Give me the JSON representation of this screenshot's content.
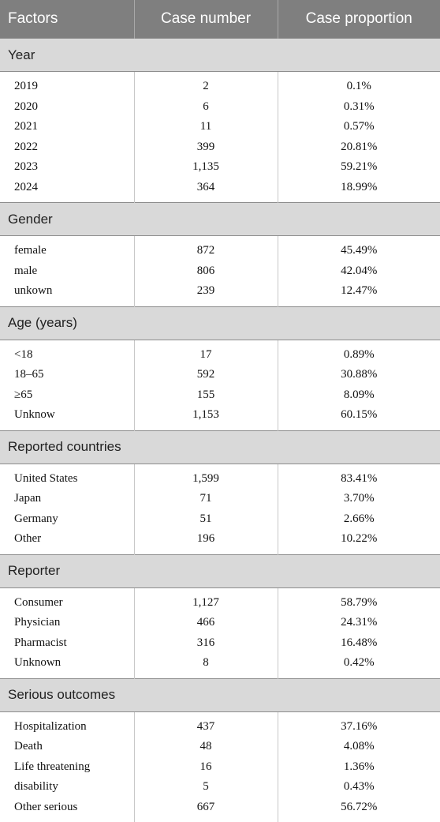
{
  "headers": [
    "Factors",
    "Case number",
    "Case proportion"
  ],
  "sections": [
    {
      "title": "Year",
      "rows": [
        [
          "2019",
          "2",
          "0.1%"
        ],
        [
          "2020",
          "6",
          "0.31%"
        ],
        [
          "2021",
          "11",
          "0.57%"
        ],
        [
          "2022",
          "399",
          "20.81%"
        ],
        [
          "2023",
          "1,135",
          "59.21%"
        ],
        [
          "2024",
          "364",
          "18.99%"
        ]
      ]
    },
    {
      "title": "Gender",
      "rows": [
        [
          "female",
          "872",
          "45.49%"
        ],
        [
          "male",
          "806",
          "42.04%"
        ],
        [
          "unkown",
          "239",
          "12.47%"
        ]
      ]
    },
    {
      "title": "Age (years)",
      "rows": [
        [
          "<18",
          "17",
          "0.89%"
        ],
        [
          "18–65",
          "592",
          "30.88%"
        ],
        [
          "≥65",
          "155",
          "8.09%"
        ],
        [
          "Unknow",
          "1,153",
          "60.15%"
        ]
      ]
    },
    {
      "title": "Reported countries",
      "rows": [
        [
          "United States",
          "1,599",
          "83.41%"
        ],
        [
          "Japan",
          "71",
          "3.70%"
        ],
        [
          "Germany",
          "51",
          "2.66%"
        ],
        [
          "Other",
          "196",
          "10.22%"
        ]
      ]
    },
    {
      "title": "Reporter",
      "rows": [
        [
          "Consumer",
          "1,127",
          "58.79%"
        ],
        [
          "Physician",
          "466",
          "24.31%"
        ],
        [
          "Pharmacist",
          "316",
          "16.48%"
        ],
        [
          "Unknown",
          "8",
          "0.42%"
        ]
      ]
    },
    {
      "title": "Serious outcomes",
      "rows": [
        [
          "Hospitalization",
          "437",
          "37.16%"
        ],
        [
          "Death",
          "48",
          "4.08%"
        ],
        [
          "Life threatening",
          "16",
          "1.36%"
        ],
        [
          "disability",
          "5",
          "0.43%"
        ],
        [
          "Other serious",
          "667",
          "56.72%"
        ]
      ]
    }
  ]
}
